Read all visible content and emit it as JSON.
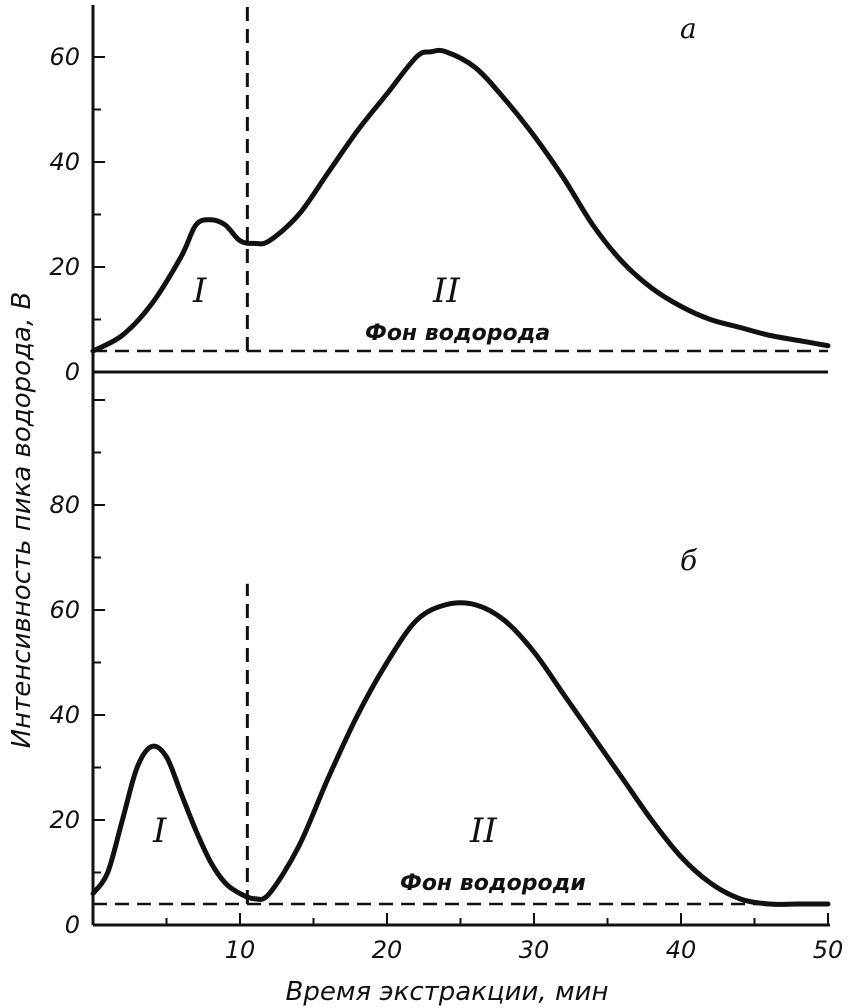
{
  "chart_data": [
    {
      "type": "line",
      "panel_label": "a",
      "ylim": [
        0,
        70
      ],
      "yticks": [
        "0",
        "20",
        "40",
        "60"
      ],
      "x": [
        0,
        2,
        4,
        6,
        7,
        8,
        9,
        10,
        11,
        12,
        14,
        16,
        18,
        20,
        22,
        23,
        24,
        26,
        28,
        30,
        32,
        34,
        36,
        38,
        40,
        42,
        44,
        46,
        48,
        50
      ],
      "series": [
        {
          "values": [
            4,
            7,
            13,
            22,
            28,
            29,
            28,
            25,
            24.5,
            25,
            30,
            38,
            46,
            53,
            60,
            61,
            61,
            58,
            52,
            45,
            37,
            28,
            21,
            16,
            12.5,
            10,
            8.5,
            7,
            6,
            5
          ]
        }
      ],
      "divider_x": 10.5,
      "background_level": 4,
      "background_label": "Фон водорода",
      "region_labels": [
        "I",
        "II"
      ]
    },
    {
      "type": "line",
      "panel_label": "б",
      "ylim": [
        0,
        100
      ],
      "yticks": [
        "0",
        "20",
        "40",
        "60",
        "80"
      ],
      "x": [
        0,
        1,
        2,
        3,
        4,
        5,
        6,
        7,
        8,
        9,
        10,
        11,
        12,
        14,
        16,
        18,
        20,
        22,
        24,
        26,
        28,
        30,
        32,
        34,
        36,
        38,
        40,
        42,
        44,
        46,
        48,
        50
      ],
      "series": [
        {
          "values": [
            6,
            10,
            20,
            30,
            34,
            32,
            25,
            18,
            12,
            8,
            6,
            5,
            6,
            15,
            28,
            40,
            50,
            58,
            61,
            61,
            58,
            52,
            44,
            36,
            28,
            20,
            13,
            8,
            5,
            4,
            4,
            4
          ]
        }
      ],
      "divider_x": 10.5,
      "background_level": 4,
      "background_label": "Фон водороди",
      "region_labels": [
        "I",
        "II"
      ]
    }
  ],
  "shared": {
    "xlim": [
      0,
      50
    ],
    "xticks": [
      "10",
      "20",
      "30",
      "40",
      "50"
    ],
    "xlabel": "Время экстракции, мин",
    "ylabel": "Интенсивность пика водорода, В"
  }
}
